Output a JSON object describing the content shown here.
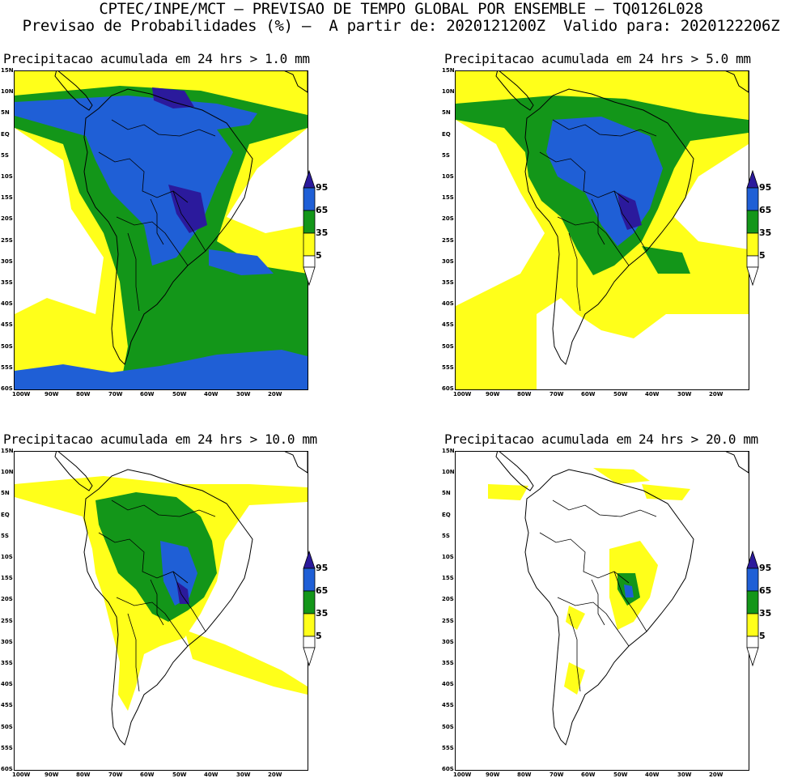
{
  "header": {
    "line1": "CPTEC/INPE/MCT – PREVISAO DE TEMPO GLOBAL POR ENSEMBLE – TQ0126L028",
    "line2": "Previsao de Probabilidades (%) –  A partir de: 2020121200Z  Valido para: 2020122206Z"
  },
  "panels": [
    {
      "title": "Precipitacao acumulada em 24 hrs > 1.0 mm"
    },
    {
      "title": "Precipitacao acumulada em 24 hrs > 5.0 mm"
    },
    {
      "title": "Precipitacao acumulada em 24 hrs > 10.0 mm"
    },
    {
      "title": "Precipitacao acumulada em 24 hrs > 20.0 mm"
    }
  ],
  "lat_labels": [
    "15N",
    "10N",
    "5N",
    "EQ",
    "5S",
    "10S",
    "15S",
    "20S",
    "25S",
    "30S",
    "35S",
    "40S",
    "45S",
    "50S",
    "55S",
    "60S"
  ],
  "lon_labels": [
    "100W",
    "90W",
    "80W",
    "70W",
    "60W",
    "50W",
    "40W",
    "30W",
    "20W"
  ],
  "legend": {
    "levels": [
      "95",
      "65",
      "35",
      "5"
    ],
    "colors": {
      "level_95": "#2b1a9c",
      "level_65": "#1f5fd6",
      "level_35": "#139619",
      "level_5": "#ffff1a"
    }
  }
}
